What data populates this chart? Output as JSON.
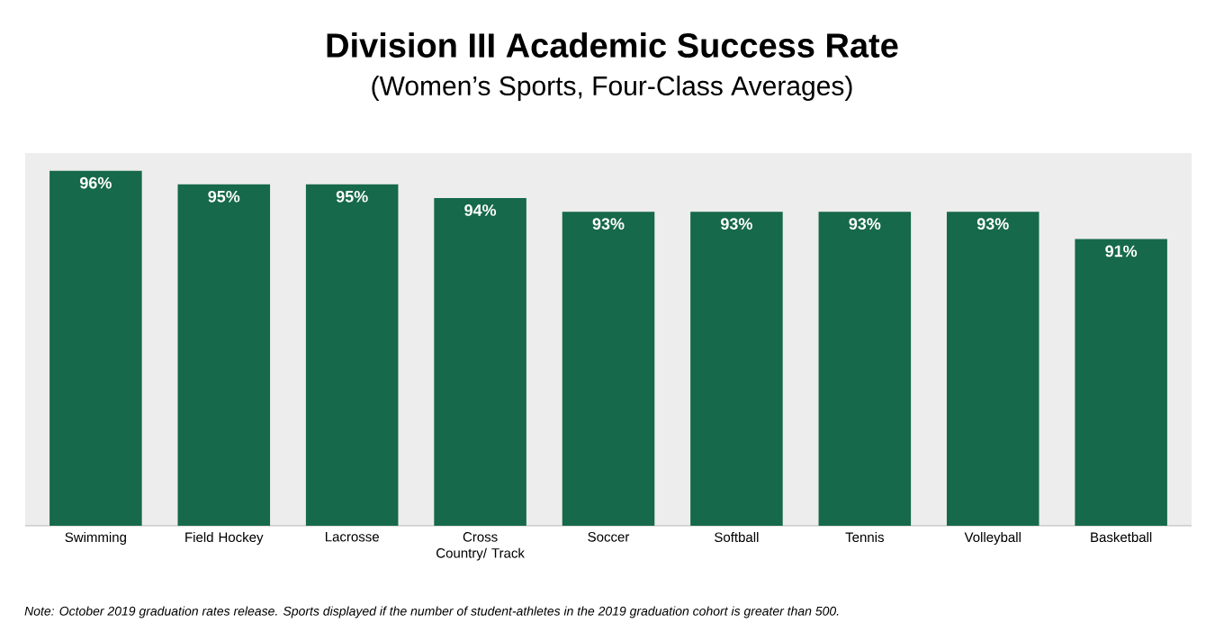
{
  "chart_data": {
    "type": "bar",
    "title": "Division III Academic Success Rate",
    "subtitle": "(Women’s Sports, Four-Class Averages)",
    "categories": [
      "Swimming",
      "Field Hockey",
      "Lacrosse",
      "Cross Country/ Track",
      "Soccer",
      "Softball",
      "Tennis",
      "Volleyball",
      "Basketball"
    ],
    "values": [
      96,
      95,
      95,
      94,
      93,
      93,
      93,
      93,
      91
    ],
    "value_labels": [
      "96%",
      "95%",
      "95%",
      "94%",
      "93%",
      "93%",
      "93%",
      "93%",
      "91%"
    ],
    "color": "#16694a",
    "ylim": [
      70,
      97.3
    ],
    "annotations": [
      "Note: October 2019 graduation rates release. Sports displayed if the number of student-athletes in the 2019 graduation cohort is greater than 500."
    ]
  }
}
